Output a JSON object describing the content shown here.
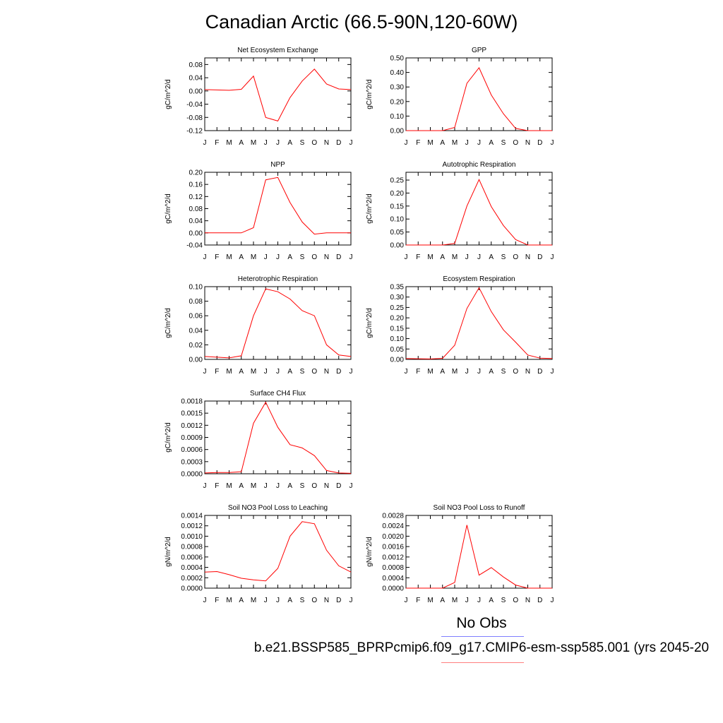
{
  "title": "Canadian Arctic (66.5-90N,120-60W)",
  "legend": {
    "obs_label": "No Obs",
    "case_label": "b.e21.BSSP585_BPRPcmip6.f09_g17.CMIP6-esm-ssp585.001 (yrs 2045-20",
    "obs_color": "#0000ff",
    "case_color": "#ff0000"
  },
  "chart_data": [
    {
      "type": "line",
      "title": "Net Ecosystem Exchange",
      "ylabel": "gC/m^2/d",
      "x": [
        "J",
        "F",
        "M",
        "A",
        "M",
        "J",
        "J",
        "A",
        "S",
        "O",
        "N",
        "D",
        "J"
      ],
      "ylim": [
        -0.12,
        0.1
      ],
      "yticks": [
        "0.08",
        "0.04",
        "0.00",
        "-0.04",
        "-0.08",
        "-0.12"
      ],
      "ytick_values": [
        0.08,
        0.04,
        0.0,
        -0.04,
        -0.08,
        -0.12
      ],
      "series": [
        {
          "color": "#ff0000",
          "values": [
            0.004,
            0.003,
            0.002,
            0.005,
            0.045,
            -0.08,
            -0.091,
            -0.02,
            0.03,
            0.066,
            0.021,
            0.006,
            0.004
          ]
        }
      ]
    },
    {
      "type": "line",
      "title": "GPP",
      "ylabel": "gC/m^2/d",
      "x": [
        "J",
        "F",
        "M",
        "A",
        "M",
        "J",
        "J",
        "A",
        "S",
        "O",
        "N",
        "D",
        "J"
      ],
      "ylim": [
        0.0,
        0.5
      ],
      "yticks": [
        "0.50",
        "0.40",
        "0.30",
        "0.20",
        "0.10",
        "0.00"
      ],
      "ytick_values": [
        0.5,
        0.4,
        0.3,
        0.2,
        0.1,
        0.0
      ],
      "series": [
        {
          "color": "#ff0000",
          "values": [
            0.0,
            0.0,
            0.0,
            0.0,
            0.022,
            0.325,
            0.432,
            0.245,
            0.116,
            0.015,
            0.0,
            0.0,
            0.0
          ]
        }
      ]
    },
    {
      "type": "line",
      "title": "NPP",
      "ylabel": "gC/m^2/d",
      "x": [
        "J",
        "F",
        "M",
        "A",
        "M",
        "J",
        "J",
        "A",
        "S",
        "O",
        "N",
        "D",
        "J"
      ],
      "ylim": [
        -0.04,
        0.2
      ],
      "yticks": [
        "0.20",
        "0.16",
        "0.12",
        "0.08",
        "0.04",
        "0.00",
        "-0.04"
      ],
      "ytick_values": [
        0.2,
        0.16,
        0.12,
        0.08,
        0.04,
        0.0,
        -0.04
      ],
      "series": [
        {
          "color": "#ff0000",
          "values": [
            0.0,
            0.0,
            0.0,
            0.0,
            0.017,
            0.175,
            0.183,
            0.1,
            0.036,
            -0.004,
            0.0,
            0.0,
            0.0
          ]
        }
      ]
    },
    {
      "type": "line",
      "title": "Autotrophic Respiration",
      "ylabel": "gC/m^2/d",
      "x": [
        "J",
        "F",
        "M",
        "A",
        "M",
        "J",
        "J",
        "A",
        "S",
        "O",
        "N",
        "D",
        "J"
      ],
      "ylim": [
        0.0,
        0.28
      ],
      "yticks": [
        "0.25",
        "0.20",
        "0.15",
        "0.10",
        "0.05",
        "0.00"
      ],
      "ytick_values": [
        0.25,
        0.2,
        0.15,
        0.1,
        0.05,
        0.0
      ],
      "series": [
        {
          "color": "#ff0000",
          "values": [
            0.0,
            0.0,
            0.0,
            0.0,
            0.006,
            0.15,
            0.252,
            0.148,
            0.075,
            0.021,
            0.0,
            0.0,
            0.0
          ]
        }
      ]
    },
    {
      "type": "line",
      "title": "Heterotrophic Respiration",
      "ylabel": "gC/m^2/d",
      "x": [
        "J",
        "F",
        "M",
        "A",
        "M",
        "J",
        "J",
        "A",
        "S",
        "O",
        "N",
        "D",
        "J"
      ],
      "ylim": [
        0.0,
        0.1
      ],
      "yticks": [
        "0.10",
        "0.08",
        "0.06",
        "0.04",
        "0.02",
        "0.00"
      ],
      "ytick_values": [
        0.1,
        0.08,
        0.06,
        0.04,
        0.02,
        0.0
      ],
      "series": [
        {
          "color": "#ff0000",
          "values": [
            0.004,
            0.003,
            0.002,
            0.005,
            0.06,
            0.097,
            0.093,
            0.083,
            0.067,
            0.06,
            0.02,
            0.006,
            0.004
          ]
        }
      ]
    },
    {
      "type": "line",
      "title": "Ecosystem Respiration",
      "ylabel": "gC/m^2/d",
      "x": [
        "J",
        "F",
        "M",
        "A",
        "M",
        "J",
        "J",
        "A",
        "S",
        "O",
        "N",
        "D",
        "J"
      ],
      "ylim": [
        0.0,
        0.35
      ],
      "yticks": [
        "0.35",
        "0.30",
        "0.25",
        "0.20",
        "0.15",
        "0.10",
        "0.05",
        "0.00"
      ],
      "ytick_values": [
        0.35,
        0.3,
        0.25,
        0.2,
        0.15,
        0.1,
        0.05,
        0.0
      ],
      "series": [
        {
          "color": "#ff0000",
          "values": [
            0.004,
            0.003,
            0.002,
            0.005,
            0.068,
            0.245,
            0.345,
            0.23,
            0.142,
            0.083,
            0.021,
            0.006,
            0.004
          ]
        }
      ]
    },
    {
      "type": "line",
      "title": "Surface CH4 Flux",
      "ylabel": "gC/m^2/d",
      "x": [
        "J",
        "F",
        "M",
        "A",
        "M",
        "J",
        "J",
        "A",
        "S",
        "O",
        "N",
        "D",
        "J"
      ],
      "ylim": [
        0.0,
        0.0018
      ],
      "yticks": [
        "0.0018",
        "0.0015",
        "0.0012",
        "0.0009",
        "0.0006",
        "0.0003",
        "0.0000"
      ],
      "ytick_values": [
        0.0018,
        0.0015,
        0.0012,
        0.0009,
        0.0006,
        0.0003,
        0.0
      ],
      "series": [
        {
          "color": "#ff0000",
          "values": [
            2e-05,
            3e-05,
            3e-05,
            5e-05,
            0.00125,
            0.00177,
            0.00115,
            0.00072,
            0.00064,
            0.00045,
            8e-05,
            2e-05,
            1e-05
          ]
        }
      ]
    },
    {
      "type": "line",
      "title": "Soil NO3 Pool Loss to Leaching",
      "ylabel": "gN/m^2/d",
      "x": [
        "J",
        "F",
        "M",
        "A",
        "M",
        "J",
        "J",
        "A",
        "S",
        "O",
        "N",
        "D",
        "J"
      ],
      "ylim": [
        0.0,
        0.0014
      ],
      "yticks": [
        "0.0014",
        "0.0012",
        "0.0010",
        "0.0008",
        "0.0006",
        "0.0004",
        "0.0002",
        "0.0000"
      ],
      "ytick_values": [
        0.0014,
        0.0012,
        0.001,
        0.0008,
        0.0006,
        0.0004,
        0.0002,
        0.0
      ],
      "series": [
        {
          "color": "#ff0000",
          "values": [
            0.00031,
            0.00032,
            0.00026,
            0.00019,
            0.00016,
            0.00014,
            0.00038,
            0.001,
            0.00128,
            0.00124,
            0.00073,
            0.00043,
            0.00031
          ]
        }
      ]
    },
    {
      "type": "line",
      "title": "Soil NO3 Pool Loss to Runoff",
      "ylabel": "gN/m^2/d",
      "x": [
        "J",
        "F",
        "M",
        "A",
        "M",
        "J",
        "J",
        "A",
        "S",
        "O",
        "N",
        "D",
        "J"
      ],
      "ylim": [
        0.0,
        0.0028
      ],
      "yticks": [
        "0.0028",
        "0.0024",
        "0.0020",
        "0.0016",
        "0.0012",
        "0.0008",
        "0.0004",
        "0.0000"
      ],
      "ytick_values": [
        0.0028,
        0.0024,
        0.002,
        0.0016,
        0.0012,
        0.0008,
        0.0004,
        0.0
      ],
      "series": [
        {
          "color": "#ff0000",
          "values": [
            0.0,
            0.0,
            0.0,
            0.0,
            0.00022,
            0.00243,
            0.0005,
            0.00079,
            0.00043,
            0.00012,
            0.0,
            0.0,
            0.0
          ]
        }
      ]
    }
  ]
}
